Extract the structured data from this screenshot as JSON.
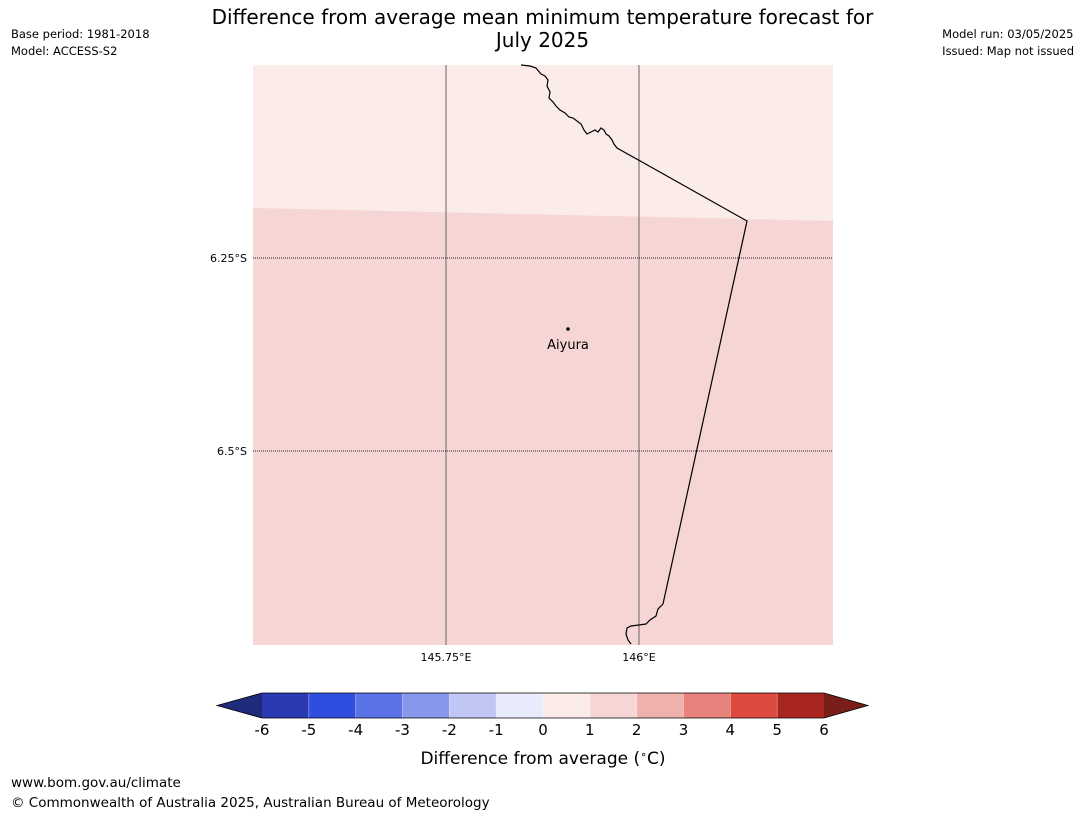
{
  "meta_left": {
    "base_period": "Base period: 1981-2018",
    "model": "Model: ACCESS-S2"
  },
  "meta_right": {
    "model_run": "Model run: 03/05/2025",
    "issued": "Issued: Map not issued"
  },
  "title": {
    "line1": "Difference from average mean minimum temperature forecast for",
    "line2": "July 2025"
  },
  "map": {
    "lat_labels": [
      "6.25°S",
      "6.5°S"
    ],
    "lon_labels": [
      "145.75°E",
      "146°E"
    ],
    "place": {
      "name": "Aiyura"
    },
    "colors": {
      "band_0_1": "#fbebe9",
      "band_1_2": "#f5d6d4",
      "coastline": "#000000",
      "gridline": "#555555"
    }
  },
  "legend": {
    "title": "Difference from average (°C)",
    "title_parts": {
      "main": "Difference from average (",
      "unit": "C)",
      "degree": "∘"
    },
    "ticks": [
      "-6",
      "-5",
      "-4",
      "-3",
      "-2",
      "-1",
      "0",
      "1",
      "2",
      "3",
      "4",
      "5",
      "6"
    ],
    "colors": {
      "under": "#1f2a7a",
      "bins": [
        "#2a3ab0",
        "#2f4ee0",
        "#5a73e6",
        "#8697ec",
        "#c0c7f4",
        "#e8ebfc",
        "#fbebe9",
        "#f5d6d4",
        "#efb1ab",
        "#e8827c",
        "#dc4a3f",
        "#a8261f"
      ],
      "over": "#7a1e1a"
    }
  },
  "footer": {
    "url": "www.bom.gov.au/climate",
    "copyright": "© Commonwealth of Australia 2025, Australian Bureau of Meteorology"
  }
}
